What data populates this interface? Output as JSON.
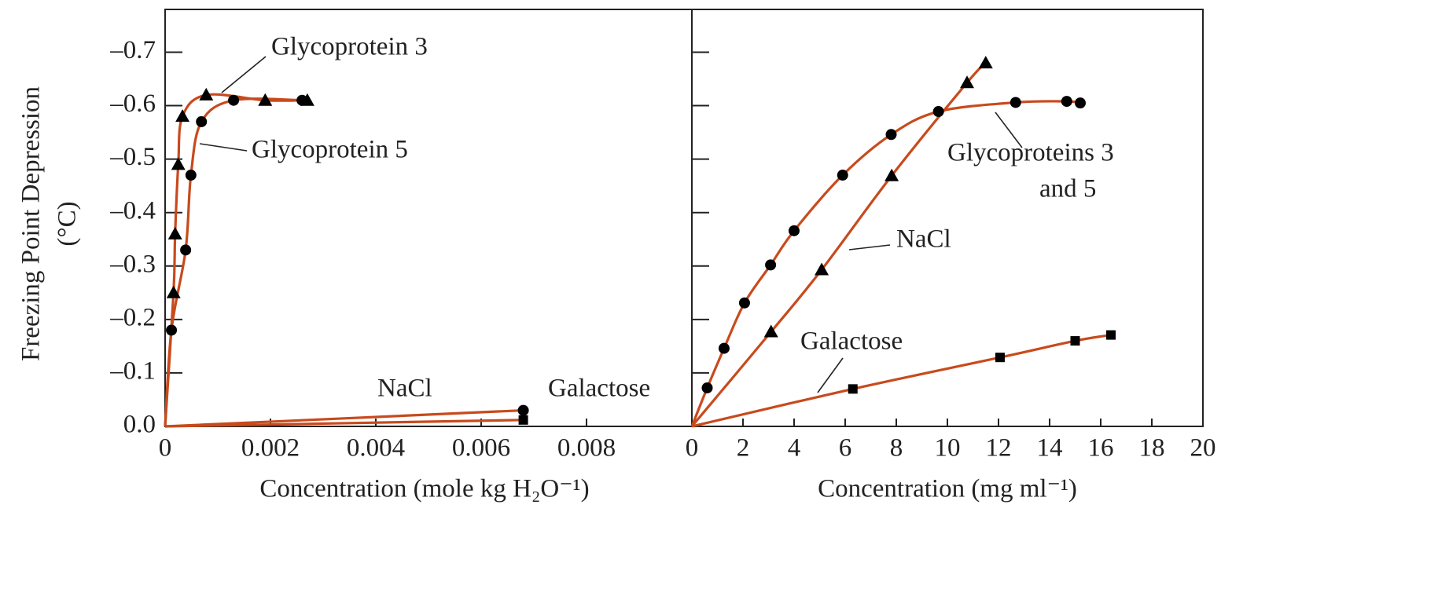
{
  "chart_data": [
    {
      "type": "line",
      "xlabel": "Concentration (mole kg H₂O⁻¹)",
      "ylabel": [
        "Freezing Point Depression",
        "(°C)"
      ],
      "xlim": [
        0,
        0.01
      ],
      "ylim": [
        0,
        -0.78
      ],
      "xticks": [
        0,
        0.002,
        0.004,
        0.006,
        0.008
      ],
      "yticks": [
        {
          "value": 0,
          "label": "0.0"
        },
        {
          "value": -0.1,
          "label": "–0.1"
        },
        {
          "value": -0.2,
          "label": "–0.2"
        },
        {
          "value": -0.3,
          "label": "–0.3"
        },
        {
          "value": -0.4,
          "label": "–0.4"
        },
        {
          "value": -0.5,
          "label": "–0.5"
        },
        {
          "value": -0.6,
          "label": "–0.6"
        },
        {
          "value": -0.7,
          "label": "–0.7"
        }
      ],
      "ytick_labels": true,
      "annotations": [
        "Glycoprotein 3",
        "Glycoprotein 5",
        "NaCl",
        "Galactose"
      ],
      "series": [
        {
          "name": "Glycoprotein 3",
          "color": "#c84a1c",
          "marker": "triangle",
          "marker_color": "#000000",
          "x": [
            0,
            0.00016,
            0.00019,
            0.00025,
            0.00033,
            0.00078,
            0.0019,
            0.0027
          ],
          "values": [
            0,
            -0.25,
            -0.36,
            -0.49,
            -0.58,
            -0.62,
            -0.61,
            -0.61
          ]
        },
        {
          "name": "Glycoprotein 5",
          "color": "#c84a1c",
          "marker": "circle",
          "marker_color": "#000000",
          "x": [
            0,
            0.00012,
            0.00039,
            0.00049,
            0.00069,
            0.0013,
            0.0026
          ],
          "values": [
            0,
            -0.18,
            -0.33,
            -0.47,
            -0.57,
            -0.61,
            -0.61
          ]
        },
        {
          "name": "NaCl",
          "color": "#c84a1c",
          "marker": "circle",
          "marker_color": "#000000",
          "x": [
            0,
            0.0068
          ],
          "values": [
            0,
            -0.03
          ]
        },
        {
          "name": "Galactose",
          "color": "#c84a1c",
          "marker": "square",
          "marker_color": "#000000",
          "x": [
            0,
            0.0068
          ],
          "values": [
            0,
            -0.012
          ]
        }
      ]
    },
    {
      "type": "line",
      "xlabel": "Concentration (mg ml⁻¹)",
      "xlim": [
        0,
        20
      ],
      "ylim": [
        0,
        -0.78
      ],
      "xticks": [
        0,
        2,
        4,
        6,
        8,
        10,
        12,
        14,
        16,
        18,
        20
      ],
      "yticks": [
        0,
        -0.1,
        -0.2,
        -0.3,
        -0.4,
        -0.5,
        -0.6,
        -0.7
      ],
      "ytick_labels": false,
      "annotations": [
        "Glycoproteins 3",
        "and 5",
        "NaCl",
        "Galactose"
      ],
      "series": [
        {
          "name": "Glycoproteins 3 and 5",
          "color": "#c84a1c",
          "marker": "circle",
          "marker_color": "#000000",
          "x": [
            0,
            0.6,
            1.26,
            2.06,
            3.08,
            4.0,
            5.9,
            7.8,
            9.65,
            12.67,
            14.67,
            15.2
          ],
          "values": [
            0,
            -0.072,
            -0.146,
            -0.231,
            -0.302,
            -0.366,
            -0.47,
            -0.546,
            -0.589,
            -0.606,
            -0.608,
            -0.605
          ]
        },
        {
          "name": "NaCl",
          "color": "#c84a1c",
          "marker": "triangle",
          "marker_color": "#000000",
          "x": [
            0,
            3.1,
            5.08,
            7.82,
            10.77,
            11.5
          ],
          "values": [
            0,
            -0.177,
            -0.293,
            -0.469,
            -0.643,
            -0.68
          ]
        },
        {
          "name": "Galactose",
          "color": "#c84a1c",
          "marker": "square",
          "marker_color": "#000000",
          "x": [
            0,
            6.3,
            12.06,
            15.0,
            16.4
          ],
          "values": [
            0,
            -0.07,
            -0.129,
            -0.16,
            -0.171
          ]
        }
      ]
    }
  ]
}
